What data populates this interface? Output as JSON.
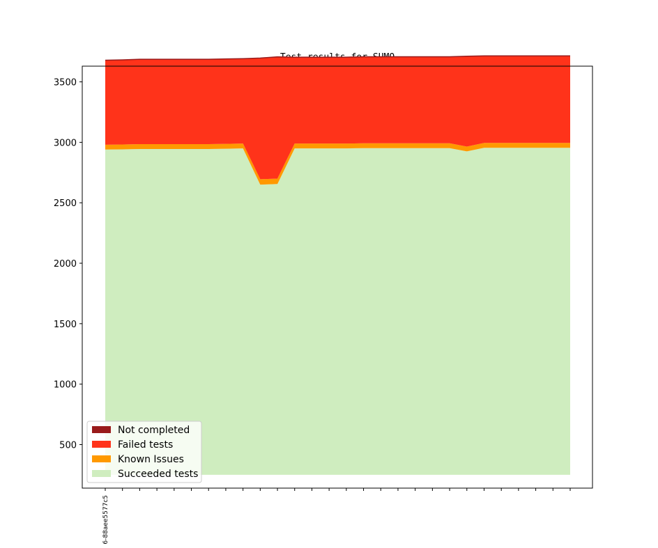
{
  "chart_data": {
    "type": "area",
    "stacked": true,
    "title": "Test results for SUMO",
    "xlabel": "",
    "ylabel": "",
    "ylim": [
      140,
      3630
    ],
    "yticks": [
      500,
      1000,
      1500,
      2000,
      2500,
      3000,
      3500
    ],
    "xtick_count": 28,
    "xtick_labels": [
      "6-88aee5577c5"
    ],
    "grid": false,
    "legend_position": "lower-left",
    "series": [
      {
        "name": "Succeeded tests",
        "color": "#cfedbf",
        "values": [
          2690,
          2692,
          2695,
          2695,
          2695,
          2695,
          2695,
          2697,
          2700,
          2400,
          2405,
          2700,
          2700,
          2700,
          2700,
          2702,
          2702,
          2702,
          2702,
          2702,
          2702,
          2675,
          2705,
          2705,
          2705,
          2705,
          2705,
          2705
        ]
      },
      {
        "name": "Known Issues",
        "color": "#ff9900",
        "values": [
          40,
          40,
          40,
          40,
          40,
          40,
          40,
          40,
          40,
          45,
          45,
          40,
          40,
          40,
          40,
          40,
          40,
          40,
          40,
          40,
          40,
          40,
          40,
          40,
          40,
          40,
          40,
          40
        ]
      },
      {
        "name": "Failed tests",
        "color": "#ff331a",
        "values": [
          697,
          698,
          700,
          700,
          700,
          700,
          700,
          701,
          700,
          1000,
          1005,
          712,
          712,
          712,
          712,
          714,
          714,
          714,
          714,
          714,
          714,
          745,
          718,
          718,
          718,
          718,
          718,
          718
        ]
      },
      {
        "name": "Not completed",
        "color": "#991a1a",
        "values": [
          2,
          2,
          2,
          2,
          2,
          2,
          2,
          2,
          2,
          2,
          2,
          2,
          2,
          2,
          2,
          2,
          2,
          2,
          2,
          2,
          2,
          2,
          2,
          2,
          2,
          2,
          2,
          2
        ]
      }
    ],
    "legend": [
      {
        "name": "Not completed",
        "color": "#991a1a"
      },
      {
        "name": "Failed tests",
        "color": "#ff331a"
      },
      {
        "name": "Known Issues",
        "color": "#ff9900"
      },
      {
        "name": "Succeeded tests",
        "color": "#cfedbf"
      }
    ]
  }
}
